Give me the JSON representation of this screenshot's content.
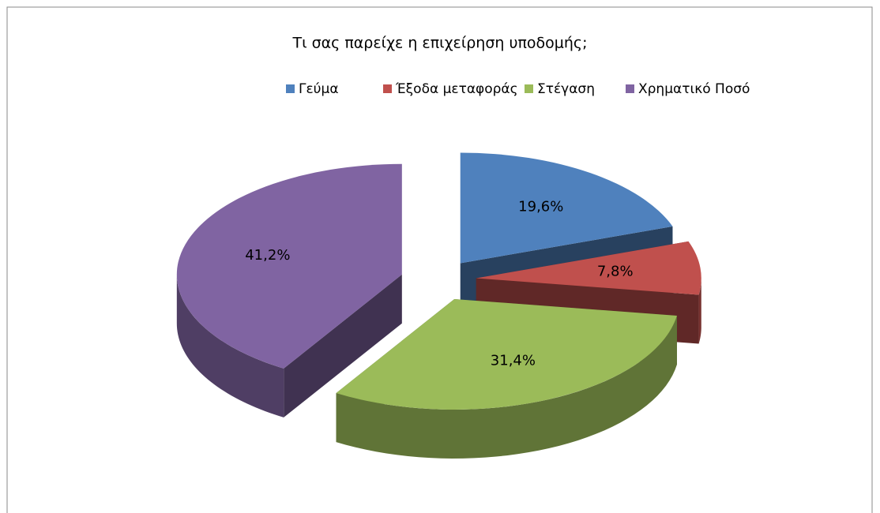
{
  "chart_data": {
    "type": "pie3d",
    "title": "Τι σας παρείχε η επιχείρηση υποδομής;",
    "categories": [
      "Γεύμα",
      "Έξοδα μεταφοράς",
      "Στέγαση",
      "Χρηματικό Ποσό"
    ],
    "values": [
      19.6,
      7.8,
      31.4,
      41.2
    ],
    "value_labels": [
      "19,6%",
      "7,8%",
      "31,4%",
      "41,2%"
    ],
    "colors": [
      "#4f81bd",
      "#c0504d",
      "#9bbb59",
      "#8064a2"
    ],
    "legend": "top"
  }
}
